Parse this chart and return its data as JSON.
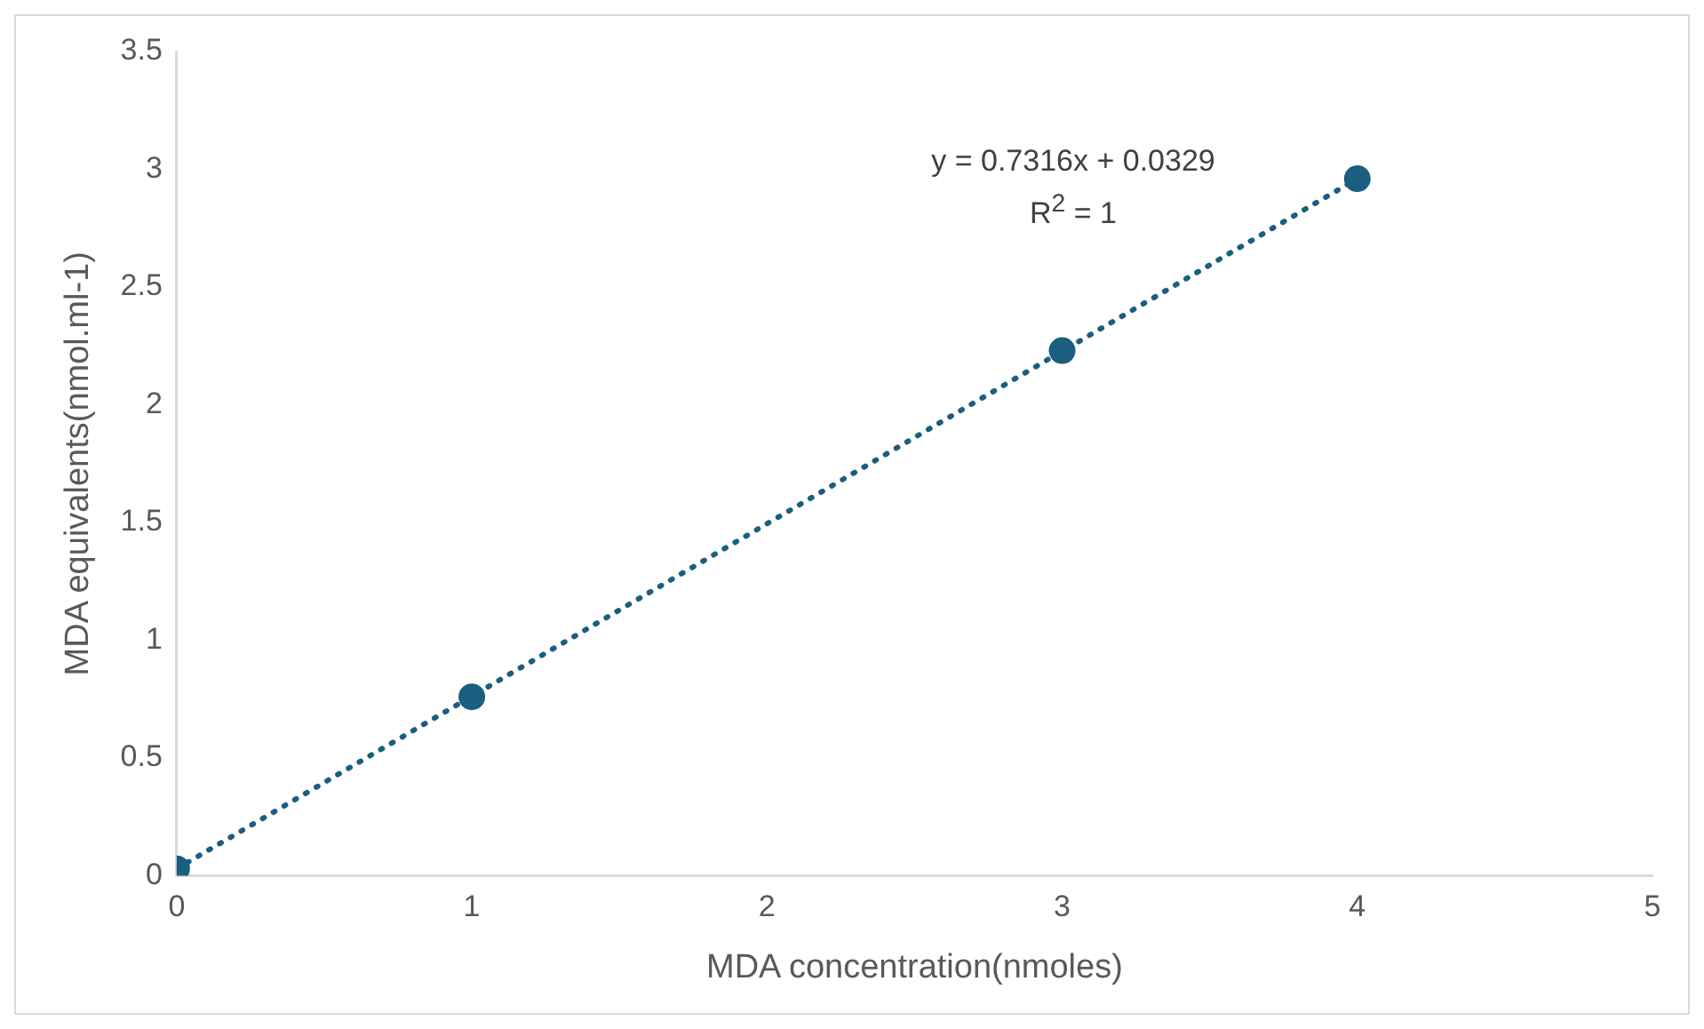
{
  "chart_data": {
    "type": "scatter",
    "xlabel": "MDA concentration(nmoles)",
    "ylabel": "MDA equivalents(nmol.ml-1)",
    "x": [
      0,
      1,
      3,
      4
    ],
    "series": [
      {
        "color": "#1b5e80",
        "values": [
          0.03,
          0.76,
          2.23,
          2.96
        ],
        "marker": "circle"
      },
      {
        "type": "line",
        "color": "#1b5e80",
        "x": [
          0,
          4
        ],
        "values": [
          0.03,
          2.96
        ],
        "line_style": "dotted",
        "marker": "none"
      }
    ],
    "xlim": [
      0,
      5
    ],
    "xticks": [
      0,
      1,
      2,
      3,
      4,
      5
    ],
    "ylim": [
      0,
      3.5
    ],
    "yticks": [
      0,
      0.5,
      1,
      1.5,
      2,
      2.5,
      3,
      3.5
    ],
    "grid": false,
    "legend": false,
    "annotations": [
      "y = 0.7316x + 0.0329",
      "R$^{2}$ = 1"
    ]
  }
}
